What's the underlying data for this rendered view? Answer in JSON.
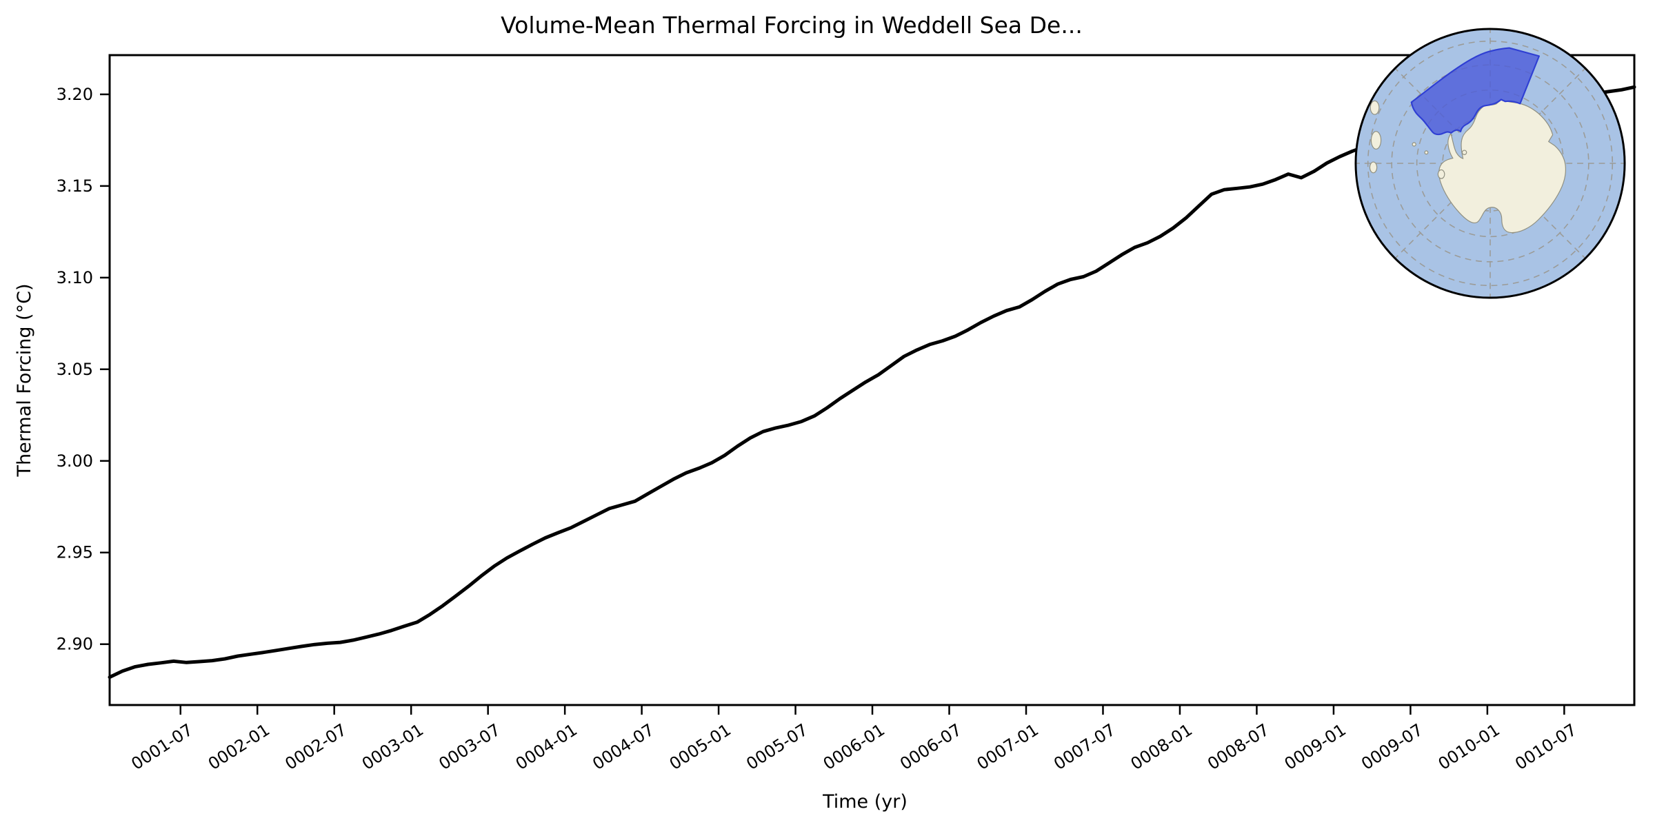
{
  "figure": {
    "title": "Volume-Mean Thermal Forcing in Weddell Sea De...",
    "background_color": "#ffffff"
  },
  "chart_data": {
    "type": "line",
    "title": "Volume-Mean Thermal Forcing in Weddell Sea De...",
    "xlabel": "Time (yr)",
    "ylabel": "Thermal Forcing (°C)",
    "x_start": "0001-01",
    "x_end": "0010-12",
    "x_frequency": "monthly",
    "xtick_labels": [
      "0001-07",
      "0002-01",
      "0002-07",
      "0003-01",
      "0003-07",
      "0004-01",
      "0004-07",
      "0005-01",
      "0005-07",
      "0006-01",
      "0006-07",
      "0007-01",
      "0007-07",
      "0008-01",
      "0008-07",
      "0009-01",
      "0009-07",
      "0010-01",
      "0010-07"
    ],
    "ytick_labels": [
      "2.90",
      "2.95",
      "3.00",
      "3.05",
      "3.10",
      "3.15",
      "3.20"
    ],
    "ytick_values": [
      2.9,
      2.95,
      3.0,
      3.05,
      3.1,
      3.15,
      3.2
    ],
    "ylim": [
      2.8668,
      3.2214
    ],
    "grid": false,
    "legend": "none",
    "line_color": "#000000",
    "line_width": 5,
    "series": [
      {
        "name": "volume_mean_thermal_forcing",
        "values": [
          2.882,
          2.8853,
          2.8877,
          2.889,
          2.8898,
          2.8907,
          2.89,
          2.8905,
          2.891,
          2.892,
          2.8935,
          2.8945,
          2.8955,
          2.8966,
          2.8977,
          2.8988,
          2.8998,
          2.9005,
          2.901,
          2.9022,
          2.9038,
          2.9055,
          2.9075,
          2.9098,
          2.912,
          2.9162,
          2.921,
          2.9262,
          2.9315,
          2.9372,
          2.9425,
          2.947,
          2.9508,
          2.9545,
          2.958,
          2.9608,
          2.9635,
          2.967,
          2.9705,
          2.974,
          2.976,
          2.978,
          2.982,
          2.986,
          2.99,
          2.9935,
          2.996,
          2.999,
          3.003,
          3.008,
          3.0125,
          3.016,
          3.018,
          3.0195,
          3.0215,
          3.0245,
          3.029,
          3.034,
          3.0385,
          3.043,
          3.047,
          3.052,
          3.057,
          3.0605,
          3.0635,
          3.0655,
          3.068,
          3.0715,
          3.0755,
          3.079,
          3.082,
          3.084,
          3.088,
          3.0925,
          3.0965,
          3.099,
          3.1005,
          3.1035,
          3.108,
          3.1125,
          3.1165,
          3.119,
          3.1225,
          3.127,
          3.1325,
          3.139,
          3.1455,
          3.148,
          3.1487,
          3.1495,
          3.151,
          3.1535,
          3.1565,
          3.1545,
          3.158,
          3.1625,
          3.166,
          3.169,
          3.1715,
          3.1735,
          3.175,
          3.1765,
          3.178,
          3.1795,
          3.1815,
          3.1835,
          3.1855,
          3.1875,
          3.1895,
          3.191,
          3.1925,
          3.194,
          3.195,
          3.196,
          3.1975,
          3.199,
          3.2005,
          3.2015,
          3.2025,
          3.204
        ]
      }
    ]
  },
  "inset_map": {
    "description": "South polar stereographic map with Weddell Sea sector highlighted",
    "ocean_color": "#a9c3e5",
    "land_color": "#f2efdd",
    "coast_color": "#8f8f80",
    "region_fill": "#4e5ed9",
    "region_edge": "#2f3fd3",
    "region_opacity": 0.82,
    "graticule_color": "#9b9b97",
    "border_color": "#000000"
  },
  "layout_colors": {
    "axis_color": "#000000",
    "text_color": "#000000"
  }
}
